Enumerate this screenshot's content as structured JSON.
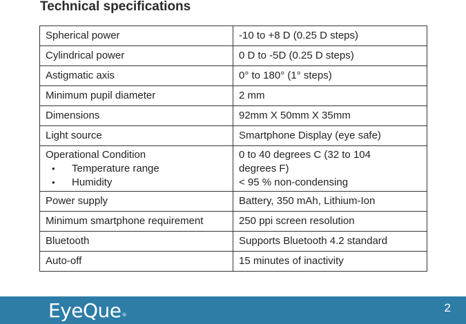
{
  "page": {
    "title": "Technical specifications",
    "page_number": "2"
  },
  "specs": [
    {
      "label": "Spherical power",
      "value": "-10 to +8 D (0.25 D steps)"
    },
    {
      "label": "Cylindrical power",
      "value": "0 D to -5D (0.25 D steps)"
    },
    {
      "label": "Astigmatic axis",
      "value": "0° to 180° (1° steps)"
    },
    {
      "label": "Minimum pupil diameter",
      "value": "2 mm"
    },
    {
      "label": "Dimensions",
      "value": "92mm X 50mm X 35mm"
    },
    {
      "label": "Light source",
      "value": "Smartphone Display (eye safe)"
    },
    {
      "label": "Operational Condition",
      "sub_labels": [
        "Temperature range",
        "Humidity"
      ],
      "value_lines": [
        "0 to 40 degrees C (32 to 104",
        "degrees F)",
        "< 95 % non-condensing"
      ]
    },
    {
      "label": "Power supply",
      "value": "Battery, 350 mAh, Lithium-Ion"
    },
    {
      "label": "Minimum smartphone requirement",
      "value": "250 ppi screen resolution"
    },
    {
      "label": "Bluetooth",
      "value": "Supports Bluetooth 4.2 standard"
    },
    {
      "label": "Auto-off",
      "value": "15 minutes of inactivity"
    }
  ],
  "footer": {
    "logo_text": "EyeQue",
    "bar_color": "#2d7da7"
  }
}
